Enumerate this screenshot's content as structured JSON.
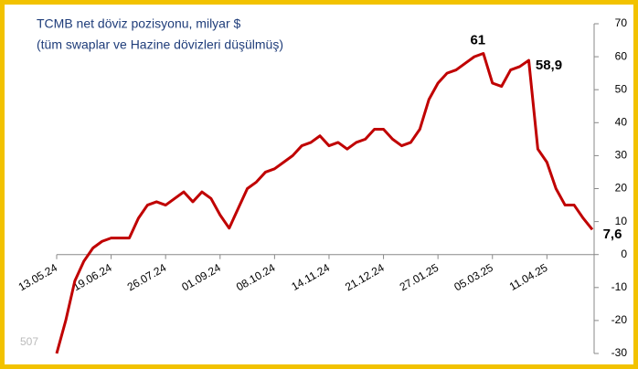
{
  "chart_data": {
    "type": "line",
    "title": "TCMB net döviz pozisyonu,  milyar $",
    "subtitle": "(tüm swaplar ve Hazine dövizleri düşülmüş)",
    "watermark": "507",
    "categories": [
      "13.05.24",
      null,
      null,
      null,
      null,
      null,
      "19.06.24",
      null,
      null,
      null,
      null,
      null,
      "26.07.24",
      null,
      null,
      null,
      null,
      null,
      "01.09.24",
      null,
      null,
      null,
      null,
      null,
      "08.10.24",
      null,
      null,
      null,
      null,
      null,
      "14.11.24",
      null,
      null,
      null,
      null,
      null,
      "21.12.24",
      null,
      null,
      null,
      null,
      null,
      "27.01.25",
      null,
      null,
      null,
      null,
      null,
      "05.03.25",
      null,
      null,
      null,
      null,
      null,
      "11.04.25",
      null,
      null,
      null,
      null,
      null
    ],
    "series": [
      {
        "color": "#c00000",
        "values": [
          -30,
          -20,
          -8,
          -2,
          2,
          4,
          5,
          5,
          5,
          11,
          15,
          16,
          15,
          17,
          19,
          16,
          19,
          17,
          12,
          8,
          14,
          20,
          22,
          25,
          26,
          28,
          30,
          33,
          34,
          36,
          33,
          34,
          32,
          34,
          35,
          38,
          38,
          35,
          33,
          34,
          38,
          47,
          52,
          55,
          56,
          58,
          60,
          61,
          52,
          51,
          56,
          57,
          58.9,
          32,
          28,
          20,
          15,
          15,
          11,
          7.6
        ],
        "value_labels": [
          null,
          null,
          null,
          null,
          null,
          null,
          null,
          null,
          null,
          null,
          null,
          null,
          null,
          null,
          null,
          null,
          null,
          null,
          null,
          null,
          null,
          null,
          null,
          null,
          null,
          null,
          null,
          null,
          null,
          null,
          null,
          null,
          null,
          null,
          null,
          null,
          null,
          null,
          null,
          null,
          null,
          null,
          null,
          null,
          null,
          null,
          null,
          "61",
          null,
          null,
          null,
          null,
          "58,9",
          null,
          null,
          null,
          null,
          null,
          null,
          "7,6"
        ]
      }
    ],
    "ylim": [
      -30,
      70
    ],
    "yticks": [
      -30,
      -20,
      -10,
      0,
      10,
      20,
      30,
      40,
      50,
      60,
      70
    ],
    "y_axis_side": "right",
    "grid": false
  }
}
